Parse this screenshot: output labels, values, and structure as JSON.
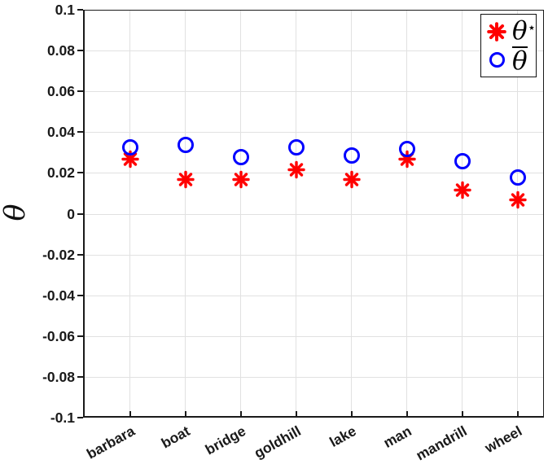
{
  "figure": {
    "background": "#ffffff"
  },
  "chart_data": {
    "type": "scatter",
    "title": "",
    "xlabel": "",
    "ylabel": "θ",
    "ylim": [
      -0.1,
      0.1
    ],
    "grid": true,
    "legend_position": "top-right",
    "categories": [
      "barbara",
      "boat",
      "bridge",
      "goldhill",
      "lake",
      "man",
      "mandrill",
      "wheel"
    ],
    "yticks": [
      0.1,
      0.08,
      0.06,
      0.04,
      0.02,
      0,
      -0.02,
      -0.04,
      -0.06,
      -0.08,
      -0.1
    ],
    "ytick_labels": [
      "0.1",
      "0.08",
      "0.06",
      "0.04",
      "0.02",
      "0",
      "-0.02",
      "-0.04",
      "-0.06",
      "-0.08",
      "-0.1"
    ],
    "series": [
      {
        "name": "theta-star",
        "label": "θ⋆",
        "marker": "asterisk",
        "color": "#ff0000",
        "values": [
          0.026,
          0.016,
          0.016,
          0.021,
          0.016,
          0.026,
          0.011,
          0.006
        ]
      },
      {
        "name": "theta-bar",
        "label": "θ̄",
        "marker": "circle",
        "color": "#0000ff",
        "values": [
          0.033,
          0.034,
          0.028,
          0.033,
          0.029,
          0.032,
          0.026,
          0.018
        ]
      }
    ],
    "legend_entries": [
      {
        "name": "theta-star",
        "marker": "asterisk",
        "color": "#ff0000",
        "base": "θ",
        "superscript": "⋆",
        "overbar": false
      },
      {
        "name": "theta-bar",
        "marker": "circle",
        "color": "#0000ff",
        "base": "θ",
        "superscript": "",
        "overbar": true
      }
    ]
  },
  "colors": {
    "red": "#ff0000",
    "blue": "#0000ff",
    "grid": "#e1e1e1",
    "axis": "#1a1a1a"
  }
}
